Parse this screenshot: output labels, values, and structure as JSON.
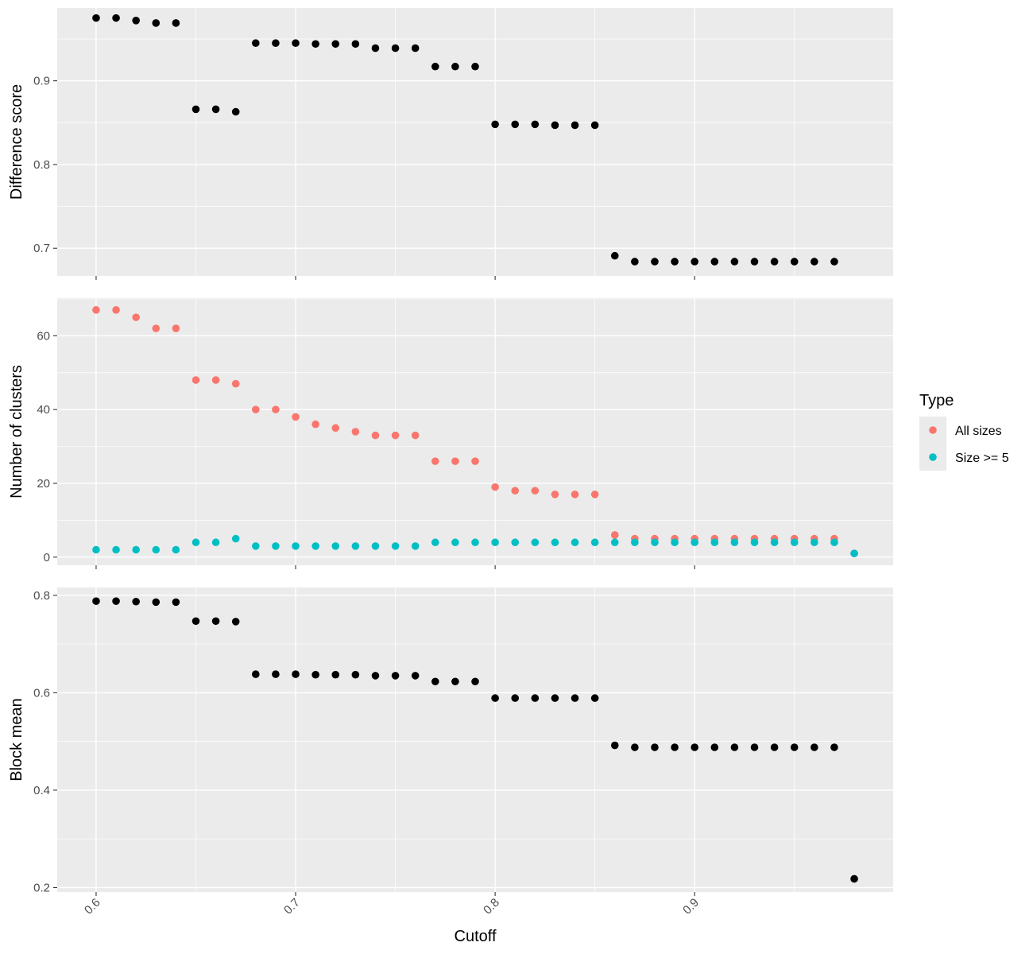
{
  "chart_data": {
    "type": "scatter",
    "x_axis": {
      "label": "Cutoff",
      "lim": [
        0.5805,
        0.9995
      ],
      "breaks": [
        0.6,
        0.7,
        0.8,
        0.9
      ],
      "tick_labels": [
        "0.6",
        "0.7",
        "0.8",
        "0.9"
      ],
      "tick_label_rotation": "45 degrees"
    },
    "x": [
      0.6,
      0.61,
      0.62,
      0.63,
      0.64,
      0.65,
      0.66,
      0.67,
      0.68,
      0.69,
      0.7,
      0.71,
      0.72,
      0.73,
      0.74,
      0.75,
      0.76,
      0.77,
      0.78,
      0.79,
      0.8,
      0.81,
      0.82,
      0.83,
      0.84,
      0.85,
      0.86,
      0.87,
      0.88,
      0.89,
      0.9,
      0.91,
      0.92,
      0.93,
      0.94,
      0.95,
      0.96,
      0.97,
      0.98
    ],
    "background_color": "#ebebeb",
    "grid": true,
    "panels": [
      {
        "ylabel": "Difference score",
        "ylim": [
          0.667,
          0.987
        ],
        "y_breaks": [
          0.7,
          0.8,
          0.9
        ],
        "y_tick_labels": [
          "0.7",
          "0.8",
          "0.9"
        ],
        "series": [
          {
            "color": "#000000",
            "values": [
              0.975,
              0.975,
              0.972,
              0.969,
              0.969,
              0.866,
              0.866,
              0.863,
              0.945,
              0.945,
              0.945,
              0.944,
              0.944,
              0.944,
              0.939,
              0.939,
              0.939,
              0.917,
              0.917,
              0.917,
              0.848,
              0.848,
              0.848,
              0.847,
              0.847,
              0.847,
              0.691,
              0.684,
              0.684,
              0.684,
              0.684,
              0.684,
              0.684,
              0.684,
              0.684,
              0.684,
              0.684,
              0.684,
              null
            ]
          }
        ]
      },
      {
        "ylabel": "Number of clusters",
        "ylim": [
          -2.2,
          70.2
        ],
        "y_breaks": [
          0,
          20,
          40,
          60
        ],
        "y_tick_labels": [
          "0",
          "20",
          "40",
          "60"
        ],
        "series": [
          {
            "name": "All sizes",
            "color": "#F8766D",
            "values": [
              67,
              67,
              65,
              62,
              62,
              48,
              48,
              47,
              40,
              40,
              38,
              36,
              35,
              34,
              33,
              33,
              33,
              26,
              26,
              26,
              19,
              18,
              18,
              17,
              17,
              17,
              6,
              5,
              5,
              5,
              5,
              5,
              5,
              5,
              5,
              5,
              5,
              5,
              1
            ]
          },
          {
            "name": "Size >= 5",
            "color": "#00BFC4",
            "values": [
              2,
              2,
              2,
              2,
              2,
              4,
              4,
              5,
              3,
              3,
              3,
              3,
              3,
              3,
              3,
              3,
              3,
              4,
              4,
              4,
              4,
              4,
              4,
              4,
              4,
              4,
              4,
              4,
              4,
              4,
              4,
              4,
              4,
              4,
              4,
              4,
              4,
              4,
              1
            ]
          }
        ]
      },
      {
        "ylabel": "Block mean",
        "ylim": [
          0.191,
          0.816
        ],
        "y_breaks": [
          0.2,
          0.4,
          0.6,
          0.8
        ],
        "y_tick_labels": [
          "0.2",
          "0.4",
          "0.6",
          "0.8"
        ],
        "series": [
          {
            "color": "#000000",
            "values": [
              0.788,
              0.788,
              0.787,
              0.786,
              0.786,
              0.747,
              0.747,
              0.746,
              0.638,
              0.638,
              0.638,
              0.637,
              0.637,
              0.637,
              0.635,
              0.635,
              0.635,
              0.623,
              0.623,
              0.623,
              0.589,
              0.589,
              0.589,
              0.589,
              0.589,
              0.589,
              0.492,
              0.488,
              0.488,
              0.488,
              0.488,
              0.488,
              0.488,
              0.488,
              0.488,
              0.488,
              0.488,
              0.488,
              0.218
            ]
          }
        ]
      }
    ],
    "legend": {
      "title": "Type",
      "placement": "right",
      "entries": [
        {
          "label": "All sizes",
          "color": "#F8766D"
        },
        {
          "label": "Size >= 5",
          "color": "#00BFC4"
        }
      ]
    }
  }
}
